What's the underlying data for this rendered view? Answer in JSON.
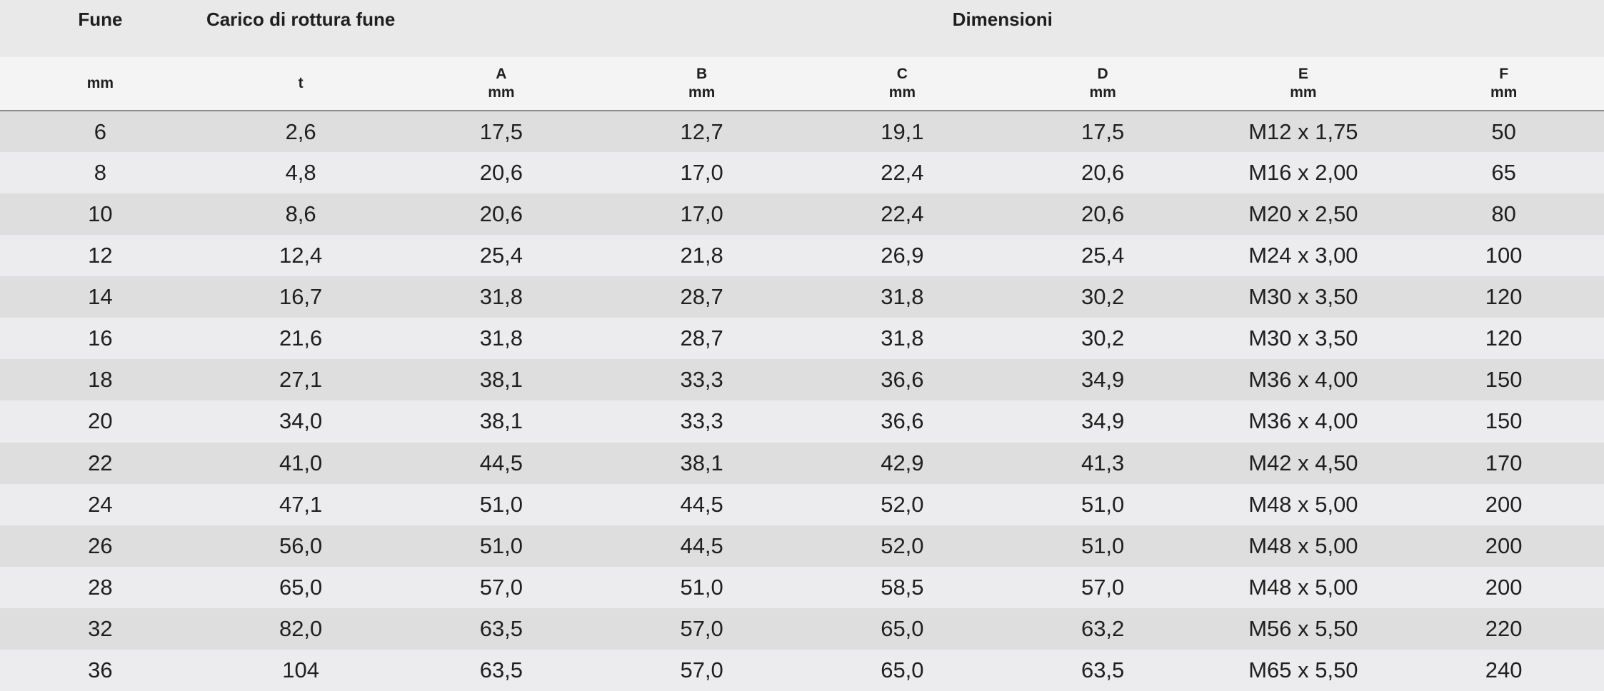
{
  "table": {
    "title_groups": [
      {
        "label": "Fune",
        "colspan": 1
      },
      {
        "label": "Carico di rottura fune",
        "colspan": 1
      },
      {
        "label": "Dimensioni",
        "colspan": 6
      }
    ],
    "columns": [
      {
        "letter": "",
        "unit": "mm"
      },
      {
        "letter": "",
        "unit": "t"
      },
      {
        "letter": "A",
        "unit": "mm"
      },
      {
        "letter": "B",
        "unit": "mm"
      },
      {
        "letter": "C",
        "unit": "mm"
      },
      {
        "letter": "D",
        "unit": "mm"
      },
      {
        "letter": "E",
        "unit": "mm"
      },
      {
        "letter": "F",
        "unit": "mm"
      }
    ],
    "rows": [
      [
        "6",
        "2,6",
        "17,5",
        "12,7",
        "19,1",
        "17,5",
        "M12 x 1,75",
        "50"
      ],
      [
        "8",
        "4,8",
        "20,6",
        "17,0",
        "22,4",
        "20,6",
        "M16 x 2,00",
        "65"
      ],
      [
        "10",
        "8,6",
        "20,6",
        "17,0",
        "22,4",
        "20,6",
        "M20 x 2,50",
        "80"
      ],
      [
        "12",
        "12,4",
        "25,4",
        "21,8",
        "26,9",
        "25,4",
        "M24 x 3,00",
        "100"
      ],
      [
        "14",
        "16,7",
        "31,8",
        "28,7",
        "31,8",
        "30,2",
        "M30 x 3,50",
        "120"
      ],
      [
        "16",
        "21,6",
        "31,8",
        "28,7",
        "31,8",
        "30,2",
        "M30 x 3,50",
        "120"
      ],
      [
        "18",
        "27,1",
        "38,1",
        "33,3",
        "36,6",
        "34,9",
        "M36 x 4,00",
        "150"
      ],
      [
        "20",
        "34,0",
        "38,1",
        "33,3",
        "36,6",
        "34,9",
        "M36 x 4,00",
        "150"
      ],
      [
        "22",
        "41,0",
        "44,5",
        "38,1",
        "42,9",
        "41,3",
        "M42 x 4,50",
        "170"
      ],
      [
        "24",
        "47,1",
        "51,0",
        "44,5",
        "52,0",
        "51,0",
        "M48 x 5,00",
        "200"
      ],
      [
        "26",
        "56,0",
        "51,0",
        "44,5",
        "52,0",
        "51,0",
        "M48 x 5,00",
        "200"
      ],
      [
        "28",
        "65,0",
        "57,0",
        "51,0",
        "58,5",
        "57,0",
        "M48 x 5,00",
        "200"
      ],
      [
        "32",
        "82,0",
        "63,5",
        "57,0",
        "65,0",
        "63,2",
        "M56 x 5,50",
        "220"
      ],
      [
        "36",
        "104",
        "63,5",
        "57,0",
        "65,0",
        "63,5",
        "M65 x 5,50",
        "240"
      ]
    ],
    "colors": {
      "header_top_bg": "#e9e9e9",
      "header_sub_bg": "#f4f4f4",
      "row_dark": "#dedede",
      "row_light": "#ececee",
      "rule": "#8a8a8a",
      "text": "#1f1f1f"
    }
  }
}
